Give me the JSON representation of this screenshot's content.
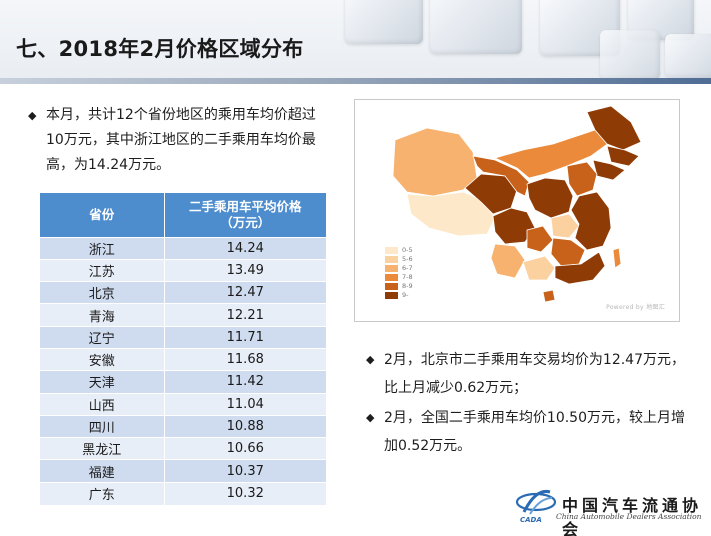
{
  "slide": {
    "title": "七、2018年2月价格区域分布"
  },
  "intro_bullet": {
    "icon": "diamond-bullet-icon",
    "text": "本月，共计12个省份地区的乘用车均价超过10万元，其中浙江地区的二手乘用车均价最高，为14.24万元。"
  },
  "table": {
    "headers": [
      "省份",
      "二手乘用车平均价格（万元）"
    ],
    "rows": [
      {
        "province": "浙江",
        "price": "14.24"
      },
      {
        "province": "江苏",
        "price": "13.49"
      },
      {
        "province": "北京",
        "price": "12.47"
      },
      {
        "province": "青海",
        "price": "12.21"
      },
      {
        "province": "辽宁",
        "price": "11.71"
      },
      {
        "province": "安徽",
        "price": "11.68"
      },
      {
        "province": "天津",
        "price": "11.42"
      },
      {
        "province": "山西",
        "price": "11.04"
      },
      {
        "province": "四川",
        "price": "10.88"
      },
      {
        "province": "黑龙江",
        "price": "10.66"
      },
      {
        "province": "福建",
        "price": "10.37"
      },
      {
        "province": "广东",
        "price": "10.32"
      }
    ]
  },
  "map": {
    "legend": [
      {
        "label": "0-5",
        "color": "#fde9c9"
      },
      {
        "label": "5-6",
        "color": "#fbd19f"
      },
      {
        "label": "6-7",
        "color": "#f7b26f"
      },
      {
        "label": "7-8",
        "color": "#ea8a3a"
      },
      {
        "label": "8-9",
        "color": "#c8621a"
      },
      {
        "label": "9-",
        "color": "#8f3b06"
      }
    ],
    "watermark": "Powered by 地图汇"
  },
  "right_bullets": [
    {
      "text": "2月，北京市二手乘用车交易均价为12.47万元，比上月减少0.62万元；"
    },
    {
      "text": "2月，全国二手乘用车均价10.50万元，较上月增加0.52万元。"
    }
  ],
  "logo": {
    "name_cn": "中国汽车流通协会",
    "name_en": "China Automobile Dealers Association",
    "abbr": "CADA",
    "accent": "#2a6bb3"
  }
}
